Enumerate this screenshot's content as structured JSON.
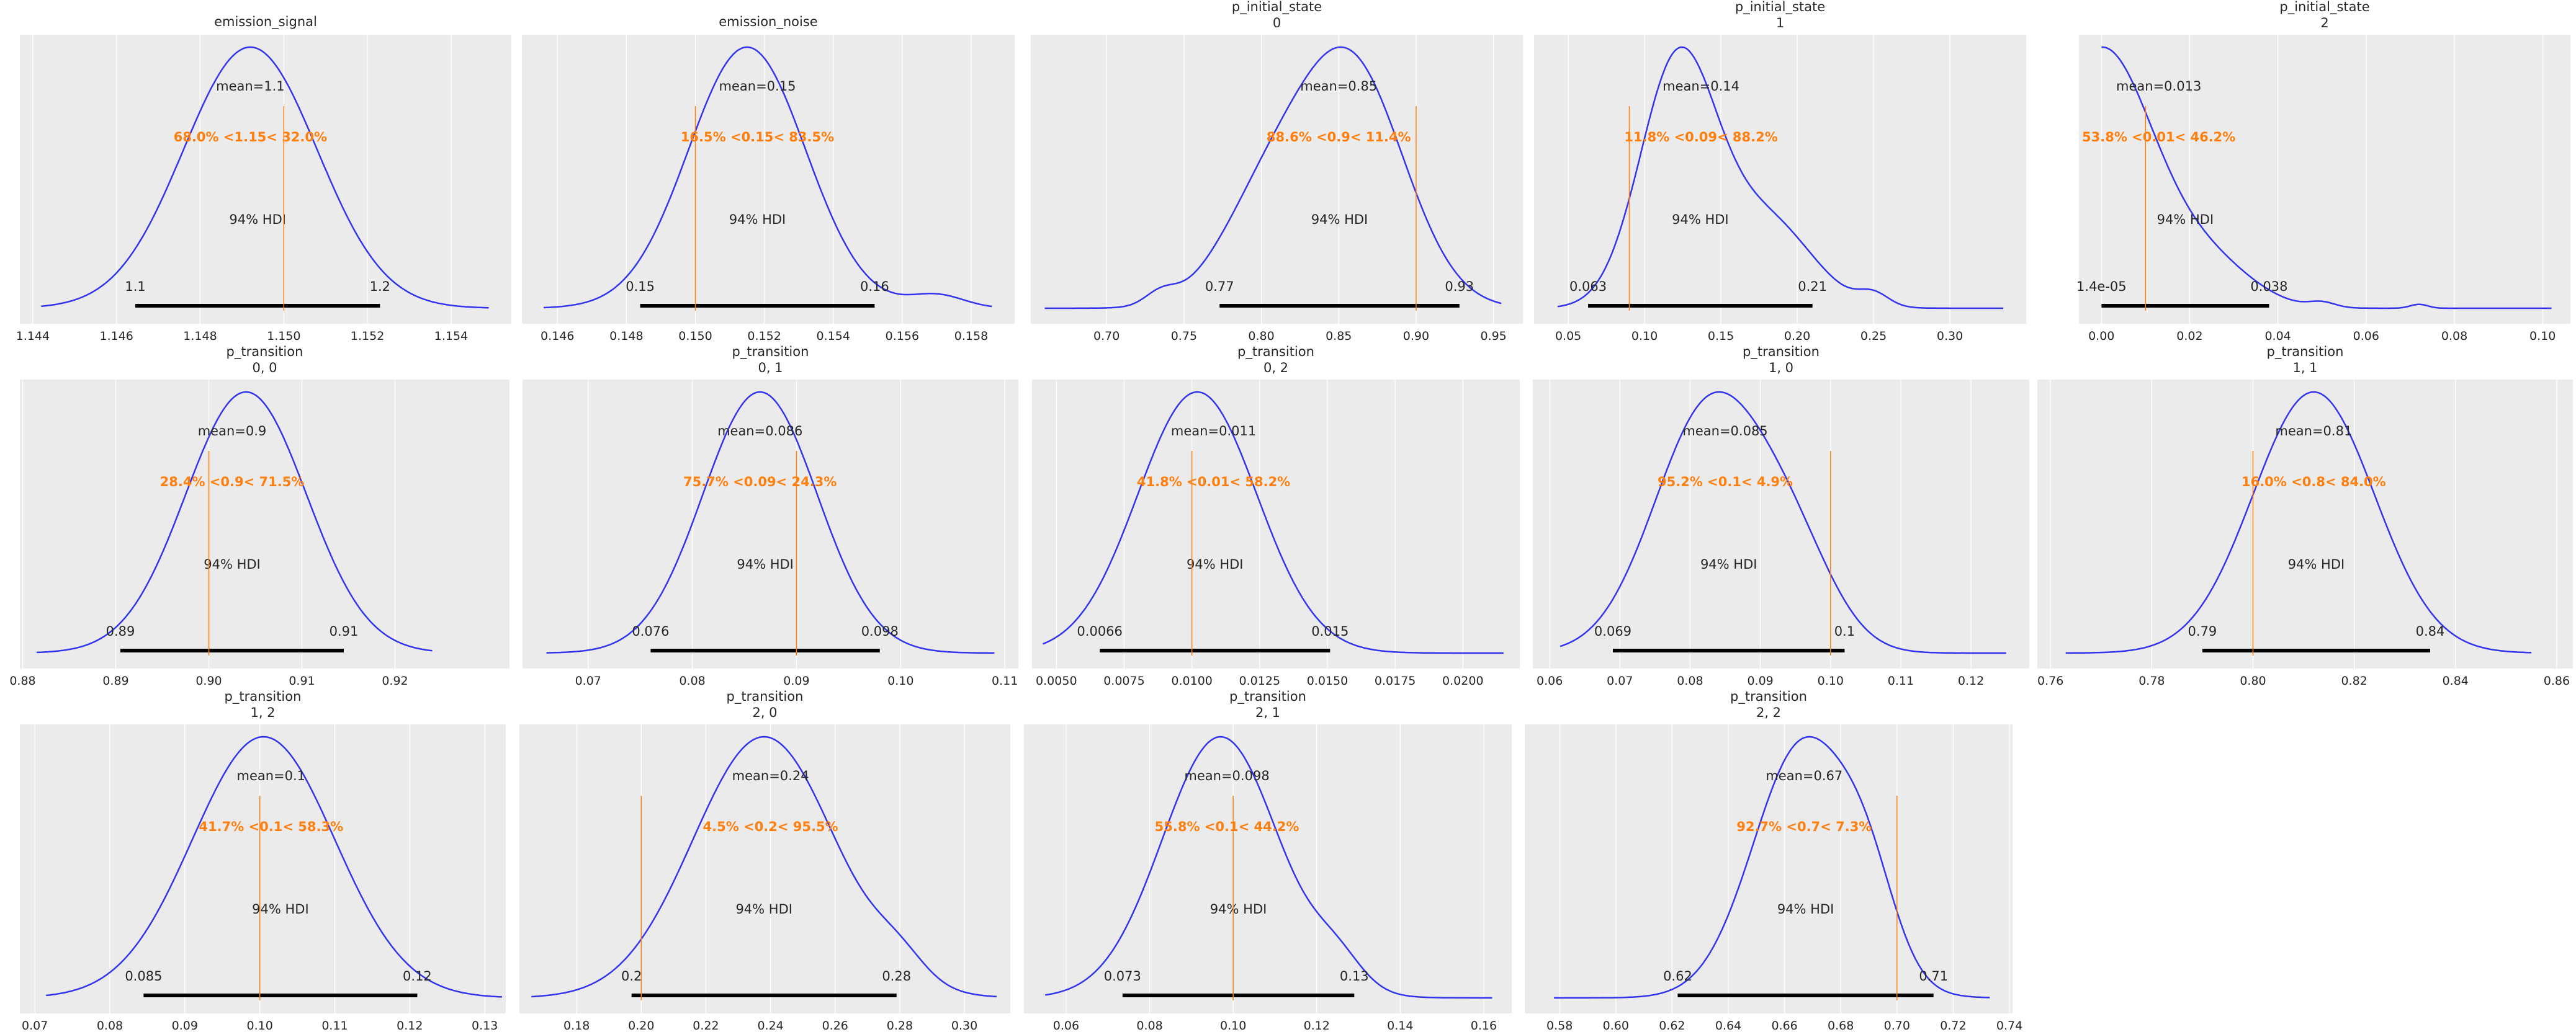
{
  "colors": {
    "background": "#ebebeb",
    "grid": "#ffffff",
    "kde": "#3333ee",
    "ref": "#ff7f0e",
    "hdi": "#000000",
    "text": "#262626"
  },
  "chart_data": [
    {
      "type": "line",
      "title": [
        "emission_signal"
      ],
      "xlim": [
        1.14369,
        1.15544
      ],
      "ticks": [
        1.144,
        1.146,
        1.148,
        1.15,
        1.152,
        1.154
      ],
      "tick_labels": [
        "1.144",
        "1.146",
        "1.148",
        "1.150",
        "1.152",
        "1.154"
      ],
      "range": [
        1.1442,
        1.1549
      ],
      "kde": [
        [
          1.1492,
          0.0016,
          1
        ]
      ],
      "mean": 1.1492,
      "mean_label": "mean=1.1",
      "ref_val": 1.15,
      "ref_label": "68.0% <1.15< 32.0%",
      "hdi": [
        1.14645,
        1.1523
      ],
      "hdi_labels": [
        "1.1",
        "1.2"
      ],
      "hdi_text": "94% HDI"
    },
    {
      "type": "line",
      "title": [
        "emission_noise"
      ],
      "xlim": [
        0.14497,
        0.15926
      ],
      "ticks": [
        0.146,
        0.148,
        0.15,
        0.152,
        0.154,
        0.156,
        0.158
      ],
      "tick_labels": [
        "0.146",
        "0.148",
        "0.150",
        "0.152",
        "0.154",
        "0.156",
        "0.158"
      ],
      "range": [
        0.1456,
        0.1586
      ],
      "kde": [
        [
          0.1515,
          0.0017,
          1
        ],
        [
          0.157,
          0.0008,
          0.05
        ]
      ],
      "mean": 0.1518,
      "mean_label": "mean=0.15",
      "ref_val": 0.15,
      "ref_label": "16.5% <0.15< 83.5%",
      "hdi": [
        0.1484,
        0.1552
      ],
      "hdi_labels": [
        "0.15",
        "0.16"
      ],
      "hdi_text": "94% HDI"
    },
    {
      "type": "line",
      "title": [
        "p_initial_state",
        "0"
      ],
      "xlim": [
        0.651,
        0.969
      ],
      "ticks": [
        0.7,
        0.75,
        0.8,
        0.85,
        0.9,
        0.95
      ],
      "tick_labels": [
        "0.70",
        "0.75",
        "0.80",
        "0.85",
        "0.90",
        "0.95"
      ],
      "range": [
        0.66,
        0.955
      ],
      "kde": [
        [
          0.857,
          0.035,
          1
        ],
        [
          0.8,
          0.03,
          0.35
        ],
        [
          0.735,
          0.01,
          0.05
        ]
      ],
      "mean": 0.85,
      "mean_label": "mean=0.85",
      "ref_val": 0.9,
      "ref_label": "88.6% <0.9< 11.4%",
      "hdi": [
        0.773,
        0.928
      ],
      "hdi_labels": [
        "0.77",
        "0.93"
      ],
      "hdi_text": "94% HDI"
    },
    {
      "type": "line",
      "title": [
        "p_initial_state",
        "1"
      ],
      "xlim": [
        0.0276,
        0.35
      ],
      "ticks": [
        0.05,
        0.1,
        0.15,
        0.2,
        0.25,
        0.3
      ],
      "tick_labels": [
        "0.05",
        "0.10",
        "0.15",
        "0.20",
        "0.25",
        "0.30"
      ],
      "range": [
        0.043,
        0.335
      ],
      "kde": [
        [
          0.122,
          0.025,
          1
        ],
        [
          0.18,
          0.03,
          0.35
        ],
        [
          0.25,
          0.01,
          0.05
        ]
      ],
      "mean": 0.137,
      "mean_label": "mean=0.14",
      "ref_val": 0.09,
      "ref_label": "11.8% <0.09< 88.2%",
      "hdi": [
        0.063,
        0.21
      ],
      "hdi_labels": [
        "0.063",
        "0.21"
      ],
      "hdi_text": "94% HDI"
    },
    {
      "type": "line",
      "title": [
        "p_initial_state",
        "2"
      ],
      "xlim": [
        -0.0051,
        0.1063
      ],
      "ticks": [
        0.0,
        0.02,
        0.04,
        0.06,
        0.08,
        0.1
      ],
      "tick_labels": [
        "0.00",
        "0.02",
        "0.04",
        "0.06",
        "0.08",
        "0.10"
      ],
      "range": [
        0.0,
        0.102
      ],
      "kde": [
        [
          0.0,
          0.012,
          1
        ],
        [
          0.025,
          0.01,
          0.15
        ],
        [
          0.05,
          0.003,
          0.02
        ],
        [
          0.072,
          0.002,
          0.015
        ]
      ],
      "mean": 0.013,
      "mean_label": "mean=0.013",
      "ref_val": 0.01,
      "ref_label": "53.8% <0.01< 46.2%",
      "hdi": [
        1.4e-05,
        0.038
      ],
      "hdi_labels": [
        "1.4e-05",
        "0.038"
      ],
      "hdi_text": "94% HDI"
    },
    {
      "type": "line",
      "title": [
        "p_transition",
        "0, 0"
      ],
      "xlim": [
        0.8797,
        0.9323
      ],
      "ticks": [
        0.88,
        0.89,
        0.9,
        0.91,
        0.92
      ],
      "tick_labels": [
        "0.88",
        "0.89",
        "0.90",
        "0.91",
        "0.92"
      ],
      "range": [
        0.8815,
        0.924
      ],
      "kde": [
        [
          0.904,
          0.0065,
          1
        ]
      ],
      "mean": 0.9025,
      "mean_label": "mean=0.9",
      "ref_val": 0.9,
      "ref_label": "28.4% <0.9< 71.5%",
      "hdi": [
        0.8905,
        0.9145
      ],
      "hdi_labels": [
        "0.89",
        "0.91"
      ],
      "hdi_text": "94% HDI"
    },
    {
      "type": "line",
      "title": [
        "p_transition",
        "0, 1"
      ],
      "xlim": [
        0.0637,
        0.1113
      ],
      "ticks": [
        0.07,
        0.08,
        0.09,
        0.1,
        0.11
      ],
      "tick_labels": [
        "0.07",
        "0.08",
        "0.09",
        "0.10",
        "0.11"
      ],
      "range": [
        0.066,
        0.109
      ],
      "kde": [
        [
          0.0865,
          0.0055,
          1
        ]
      ],
      "mean": 0.0865,
      "mean_label": "mean=0.086",
      "ref_val": 0.09,
      "ref_label": "75.7% <0.09< 24.3%",
      "hdi": [
        0.076,
        0.098
      ],
      "hdi_labels": [
        "0.076",
        "0.098"
      ],
      "hdi_text": "94% HDI"
    },
    {
      "type": "line",
      "title": [
        "p_transition",
        "0, 2"
      ],
      "xlim": [
        0.0041,
        0.0221
      ],
      "ticks": [
        0.005,
        0.0075,
        0.01,
        0.0125,
        0.015,
        0.0175,
        0.02
      ],
      "tick_labels": [
        "0.0050",
        "0.0075",
        "0.0100",
        "0.0125",
        "0.0150",
        "0.0175",
        "0.0200"
      ],
      "range": [
        0.0045,
        0.0215
      ],
      "kde": [
        [
          0.0102,
          0.0022,
          1
        ]
      ],
      "mean": 0.0108,
      "mean_label": "mean=0.011",
      "ref_val": 0.01,
      "ref_label": "41.8% <0.01< 58.2%",
      "hdi": [
        0.0066,
        0.0151
      ],
      "hdi_labels": [
        "0.0066",
        "0.015"
      ],
      "hdi_text": "94% HDI"
    },
    {
      "type": "line",
      "title": [
        "p_transition",
        "1, 0"
      ],
      "xlim": [
        0.0576,
        0.1283
      ],
      "ticks": [
        0.06,
        0.07,
        0.08,
        0.09,
        0.1,
        0.11,
        0.12
      ],
      "tick_labels": [
        "0.06",
        "0.07",
        "0.08",
        "0.09",
        "0.10",
        "0.11",
        "0.12"
      ],
      "range": [
        0.0615,
        0.125
      ],
      "kde": [
        [
          0.083,
          0.008,
          1
        ],
        [
          0.095,
          0.006,
          0.3
        ]
      ],
      "mean": 0.085,
      "mean_label": "mean=0.085",
      "ref_val": 0.1,
      "ref_label": "95.2% <0.1< 4.9%",
      "hdi": [
        0.069,
        0.102
      ],
      "hdi_labels": [
        "0.069",
        "0.1"
      ],
      "hdi_text": "94% HDI"
    },
    {
      "type": "line",
      "title": [
        "p_transition",
        "1, 1"
      ],
      "xlim": [
        0.7574,
        0.8632
      ],
      "ticks": [
        0.76,
        0.78,
        0.8,
        0.82,
        0.84,
        0.86
      ],
      "tick_labels": [
        "0.76",
        "0.78",
        "0.80",
        "0.82",
        "0.84",
        "0.86"
      ],
      "range": [
        0.763,
        0.855
      ],
      "kde": [
        [
          0.812,
          0.012,
          1
        ]
      ],
      "mean": 0.812,
      "mean_label": "mean=0.81",
      "ref_val": 0.8,
      "ref_label": "16.0% <0.8< 84.0%",
      "hdi": [
        0.79,
        0.835
      ],
      "hdi_labels": [
        "0.79",
        "0.84"
      ],
      "hdi_text": "94% HDI"
    },
    {
      "type": "line",
      "title": [
        "p_transition",
        "1, 2"
      ],
      "xlim": [
        0.068,
        0.1328
      ],
      "ticks": [
        0.07,
        0.08,
        0.09,
        0.1,
        0.11,
        0.12,
        0.13
      ],
      "tick_labels": [
        "0.07",
        "0.08",
        "0.09",
        "0.10",
        "0.11",
        "0.12",
        "0.13"
      ],
      "range": [
        0.0715,
        0.1323
      ],
      "kde": [
        [
          0.1005,
          0.0095,
          1
        ]
      ],
      "mean": 0.1015,
      "mean_label": "mean=0.1",
      "ref_val": 0.1,
      "ref_label": "41.7% <0.1< 58.3%",
      "hdi": [
        0.0845,
        0.121
      ],
      "hdi_labels": [
        "0.085",
        "0.12"
      ],
      "hdi_text": "94% HDI"
    },
    {
      "type": "line",
      "title": [
        "p_transition",
        "2, 0"
      ],
      "xlim": [
        0.1623,
        0.3142
      ],
      "ticks": [
        0.18,
        0.2,
        0.22,
        0.24,
        0.26,
        0.28,
        0.3
      ],
      "tick_labels": [
        "0.18",
        "0.20",
        "0.22",
        "0.24",
        "0.26",
        "0.28",
        "0.30"
      ],
      "range": [
        0.166,
        0.31
      ],
      "kde": [
        [
          0.238,
          0.022,
          1
        ],
        [
          0.28,
          0.008,
          0.08
        ]
      ],
      "mean": 0.24,
      "mean_label": "mean=0.24",
      "ref_val": 0.2,
      "ref_label": "4.5% <0.2< 95.5%",
      "hdi": [
        0.197,
        0.279
      ],
      "hdi_labels": [
        "0.2",
        "0.28"
      ],
      "hdi_text": "94% HDI"
    },
    {
      "type": "line",
      "title": [
        "p_transition",
        "2, 1"
      ],
      "xlim": [
        0.0499,
        0.1667
      ],
      "ticks": [
        0.06,
        0.08,
        0.1,
        0.12,
        0.14,
        0.16
      ],
      "tick_labels": [
        "0.06",
        "0.08",
        "0.10",
        "0.12",
        "0.14",
        "0.16"
      ],
      "range": [
        0.055,
        0.162
      ],
      "kde": [
        [
          0.097,
          0.014,
          1
        ],
        [
          0.125,
          0.006,
          0.1
        ]
      ],
      "mean": 0.0985,
      "mean_label": "mean=0.098",
      "ref_val": 0.1,
      "ref_label": "55.8% <0.1< 44.2%",
      "hdi": [
        0.0735,
        0.129
      ],
      "hdi_labels": [
        "0.073",
        "0.13"
      ],
      "hdi_text": "94% HDI"
    },
    {
      "type": "line",
      "title": [
        "p_transition",
        "2, 2"
      ],
      "xlim": [
        0.5676,
        0.7411
      ],
      "ticks": [
        0.58,
        0.6,
        0.62,
        0.64,
        0.66,
        0.68,
        0.7,
        0.72,
        0.74
      ],
      "tick_labels": [
        "0.58",
        "0.60",
        "0.62",
        "0.64",
        "0.66",
        "0.68",
        "0.70",
        "0.72",
        "0.74"
      ],
      "range": [
        0.578,
        0.733
      ],
      "kde": [
        [
          0.667,
          0.018,
          1
        ],
        [
          0.69,
          0.01,
          0.25
        ]
      ],
      "mean": 0.667,
      "mean_label": "mean=0.67",
      "ref_val": 0.7,
      "ref_label": "92.7% <0.7< 7.3%",
      "hdi": [
        0.622,
        0.713
      ],
      "hdi_labels": [
        "0.62",
        "0.71"
      ],
      "hdi_text": "94% HDI"
    }
  ]
}
